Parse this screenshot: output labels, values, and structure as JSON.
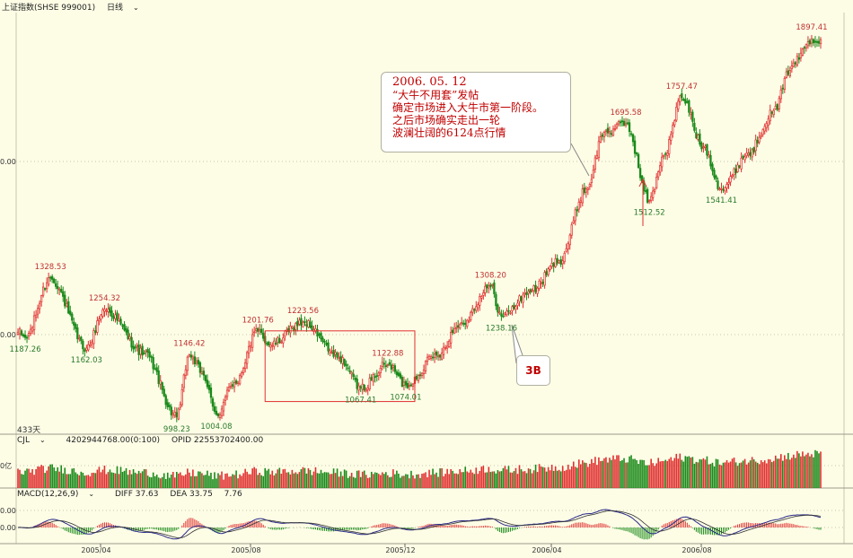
{
  "header": {
    "name": "上证指数(SHSE 999001)",
    "period": "日线"
  },
  "price_axis": {
    "labels": [
      "0.00",
      "0.00"
    ]
  },
  "days_label": "433天",
  "volume_panel": {
    "indicator": "CJL",
    "value": "4202944768.00(0:100)",
    "opid": "OPID 22553702400.00",
    "axis_label": "0亿"
  },
  "macd_panel": {
    "indicator": "MACD(12,26,9)",
    "diff": "DIFF 37.63",
    "dea": "DEA 33.75",
    "macd": "7.76",
    "axis_labels": [
      "0.00",
      "0.00"
    ]
  },
  "annotation": {
    "lines": [
      "2006. 05. 12",
      "“大牛不用套”发帖",
      "确定市场进入大牛市第一阶段。",
      "之后市场确实走出一轮",
      "波澜壮阔的6124点行情"
    ],
    "tag": "3B"
  },
  "colors": {
    "up": "#e03030",
    "down": "#1a8a1a",
    "label_high": "#c03030",
    "label_low": "#2a7a2a",
    "diff_line": "#2a2a8a",
    "dea_line": "#303030",
    "box": "#e03030"
  },
  "chart_data": {
    "type": "candlestick",
    "x_ticks": [
      "2005/04",
      "2005/08",
      "2005/12",
      "2006/04",
      "2006/08"
    ],
    "anchors": [
      {
        "i": 0,
        "v": 1200
      },
      {
        "i": 4,
        "v": 1187.26
      },
      {
        "i": 18,
        "v": 1328.53
      },
      {
        "i": 38,
        "v": 1162.03
      },
      {
        "i": 48,
        "v": 1254.32
      },
      {
        "i": 70,
        "v": 1150
      },
      {
        "i": 88,
        "v": 998.23
      },
      {
        "i": 95,
        "v": 1146.42
      },
      {
        "i": 102,
        "v": 1105
      },
      {
        "i": 110,
        "v": 1004.08
      },
      {
        "i": 120,
        "v": 1080
      },
      {
        "i": 133,
        "v": 1201.76
      },
      {
        "i": 140,
        "v": 1170
      },
      {
        "i": 158,
        "v": 1223.56
      },
      {
        "i": 178,
        "v": 1140
      },
      {
        "i": 190,
        "v": 1067.41
      },
      {
        "i": 205,
        "v": 1122.88
      },
      {
        "i": 215,
        "v": 1074.01
      },
      {
        "i": 232,
        "v": 1145
      },
      {
        "i": 245,
        "v": 1218
      },
      {
        "i": 262,
        "v": 1308.2
      },
      {
        "i": 268,
        "v": 1238.16
      },
      {
        "i": 285,
        "v": 1300
      },
      {
        "i": 300,
        "v": 1370
      },
      {
        "i": 315,
        "v": 1540
      },
      {
        "i": 325,
        "v": 1675
      },
      {
        "i": 337,
        "v": 1695.58
      },
      {
        "i": 350,
        "v": 1512.52
      },
      {
        "i": 358,
        "v": 1620
      },
      {
        "i": 368,
        "v": 1757.47
      },
      {
        "i": 380,
        "v": 1640
      },
      {
        "i": 390,
        "v": 1541.41
      },
      {
        "i": 405,
        "v": 1625
      },
      {
        "i": 418,
        "v": 1720
      },
      {
        "i": 430,
        "v": 1840
      },
      {
        "i": 440,
        "v": 1897.41
      }
    ],
    "labels": [
      {
        "text": "1187.26",
        "i": 4,
        "v": 1187.26,
        "pos": "below"
      },
      {
        "text": "1328.53",
        "i": 18,
        "v": 1328.53,
        "pos": "above"
      },
      {
        "text": "1162.03",
        "i": 38,
        "v": 1162.03,
        "pos": "below"
      },
      {
        "text": "1254.32",
        "i": 48,
        "v": 1254.32,
        "pos": "above"
      },
      {
        "text": "998.23",
        "i": 88,
        "v": 998.23,
        "pos": "below"
      },
      {
        "text": "1146.42",
        "i": 95,
        "v": 1146.42,
        "pos": "above"
      },
      {
        "text": "1004.08",
        "i": 110,
        "v": 1004.08,
        "pos": "below"
      },
      {
        "text": "1201.76",
        "i": 133,
        "v": 1201.76,
        "pos": "above"
      },
      {
        "text": "1223.56",
        "i": 158,
        "v": 1223.56,
        "pos": "above"
      },
      {
        "text": "1067.41",
        "i": 190,
        "v": 1067.41,
        "pos": "below"
      },
      {
        "text": "1122.88",
        "i": 205,
        "v": 1122.88,
        "pos": "above"
      },
      {
        "text": "1074.01",
        "i": 215,
        "v": 1074.01,
        "pos": "below"
      },
      {
        "text": "1308.20",
        "i": 262,
        "v": 1308.2,
        "pos": "above"
      },
      {
        "text": "1238.16",
        "i": 268,
        "v": 1238.16,
        "pos": "below"
      },
      {
        "text": "1695.58",
        "i": 337,
        "v": 1695.58,
        "pos": "above"
      },
      {
        "text": "1512.52",
        "i": 350,
        "v": 1512.52,
        "pos": "below"
      },
      {
        "text": "1757.47",
        "i": 368,
        "v": 1757.47,
        "pos": "above"
      },
      {
        "text": "1541.41",
        "i": 390,
        "v": 1541.41,
        "pos": "below"
      },
      {
        "text": "1897.41",
        "i": 440,
        "v": 1897.41,
        "pos": "above"
      }
    ],
    "highlight_box": {
      "i_start": 137,
      "i_end": 220,
      "v_top": 1203,
      "v_bottom": 1035
    },
    "ylim": [
      960,
      1960
    ],
    "count": 446
  }
}
